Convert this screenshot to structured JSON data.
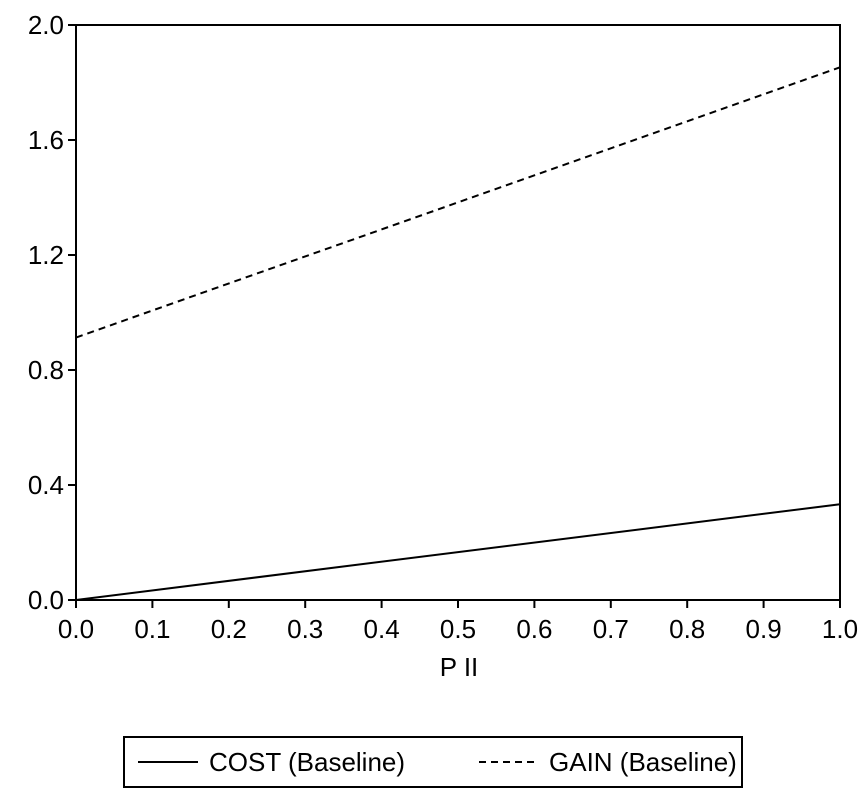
{
  "chart_data": {
    "type": "line",
    "xlabel": "P II",
    "ylabel": "",
    "title": "",
    "xlim": [
      0.0,
      1.0
    ],
    "ylim": [
      0.0,
      2.0
    ],
    "x_ticks": [
      "0.0",
      "0.1",
      "0.2",
      "0.3",
      "0.4",
      "0.5",
      "0.6",
      "0.7",
      "0.8",
      "0.9",
      "1.0"
    ],
    "y_ticks": [
      "0.0",
      "0.4",
      "0.8",
      "1.2",
      "1.6",
      "2.0"
    ],
    "grid": false,
    "legend_position": "bottom",
    "series": [
      {
        "name": "COST (Baseline)",
        "style": "solid",
        "color": "#000000",
        "x": [
          0.0,
          1.0
        ],
        "y": [
          0.0,
          0.333
        ]
      },
      {
        "name": "GAIN (Baseline)",
        "style": "dashed",
        "color": "#000000",
        "x": [
          0.0,
          1.0
        ],
        "y": [
          0.913,
          1.853
        ]
      }
    ]
  }
}
